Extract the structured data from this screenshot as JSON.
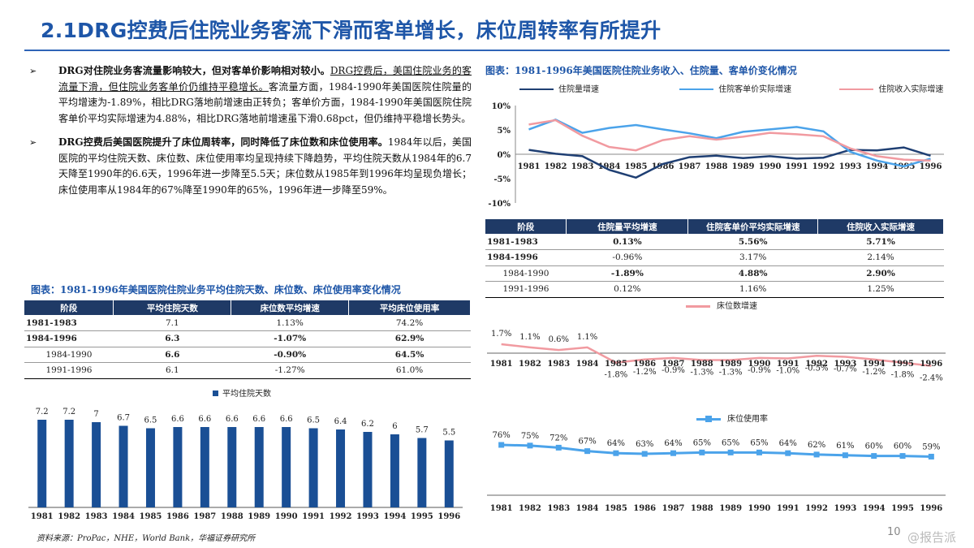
{
  "title": "2.1DRG控费后住院业务客流下滑而客单增长，床位周转率有所提升",
  "bullets": [
    {
      "mark": "➢",
      "bold": "DRG对住院业务客流量影响较大，但对客单价影响相对较小。",
      "underline": "DRG控费后，美国住院业务的客流量下滑，但住院业务客单价仍维持平稳增长。",
      "text": "客流量方面，1984-1990年美国医院住院量的平均增速为-1.89%，相比DRG落地前增速由正转负；客单价方面，1984-1990年美国医院住院客单价平均实际增速为4.88%，相比DRG落地前增速虽下滑0.68pct，但仍维持平稳增长势头。"
    },
    {
      "mark": "➢",
      "bold": "DRG控费后美国医院提升了床位周转率，同时降低了床位数和床位使用率。",
      "underline": "",
      "text": "1984年以后，美国医院的平均住院天数、床位数、床位使用率均呈现持续下降趋势，平均住院天数从1984年的6.7天降至1990年的6.6天，1996年进一步降至5.5天；床位数从1985年到1996年均呈现负增长；床位使用率从1984年的67%降至1990年的65%，1996年进一步降至59%。"
    }
  ],
  "caption_right": "图表：1981-1996年美国医院住院业务收入、住院量、客单价变化情况",
  "caption_left": "图表：1981-1996年美国医院住院业务平均住院天数、床位数、床位使用率变化情况",
  "table_right": {
    "headers": [
      "阶段",
      "住院量平均增速",
      "住院客单价平均实际增速",
      "住院收入实际增速"
    ],
    "rows": [
      {
        "cells": [
          "1981-1983",
          "0.13%",
          "5.56%",
          "5.71%"
        ],
        "bold": true
      },
      {
        "cells": [
          "1984-1996",
          "-0.96%",
          "3.17%",
          "2.14%"
        ],
        "bold": false
      },
      {
        "cells": [
          "1984-1990",
          "-1.89%",
          "4.88%",
          "2.90%"
        ],
        "bold": false
      },
      {
        "cells": [
          "1991-1996",
          "0.12%",
          "1.16%",
          "1.25%"
        ],
        "bold": false
      }
    ]
  },
  "table_left": {
    "headers": [
      "阶段",
      "平均住院天数",
      "床位数平均增速",
      "平均床位使用率"
    ],
    "rows": [
      {
        "cells": [
          "1981-1983",
          "7.1",
          "1.13%",
          "74.2%"
        ]
      },
      {
        "cells": [
          "1984-1996",
          "6.3",
          "-1.07%",
          "62.9%"
        ]
      },
      {
        "cells": [
          "1984-1990",
          "6.6",
          "-0.90%",
          "64.5%"
        ]
      },
      {
        "cells": [
          "1991-1996",
          "6.1",
          "-1.27%",
          "61.0%"
        ]
      }
    ]
  },
  "source": "资料来源：ProPac，NHE，World Bank，华福证券研究所",
  "page_number": "10",
  "watermark": "@报告派",
  "chart_data": [
    {
      "type": "line",
      "title": "1981-1996年美国医院住院业务收入、住院量、客单价变化情况",
      "categories": [
        "1981",
        "1982",
        "1983",
        "1984",
        "1985",
        "1986",
        "1987",
        "1988",
        "1989",
        "1990",
        "1991",
        "1992",
        "1993",
        "1994",
        "1995",
        "1996"
      ],
      "ylim": [
        -10,
        10
      ],
      "yticks": [
        "10%",
        "5%",
        "0%",
        "-5%",
        "-10%"
      ],
      "series": [
        {
          "name": "住院量增速",
          "color": "#1f3f73",
          "values": [
            0.9,
            0.1,
            -0.4,
            -3.2,
            -4.8,
            -2.0,
            -0.6,
            -0.3,
            -0.8,
            -0.4,
            -0.9,
            -0.7,
            0.9,
            0.8,
            1.4,
            -0.3
          ]
        },
        {
          "name": "住院客单价实际增速",
          "color": "#4ba3ea",
          "values": [
            5.1,
            7.1,
            4.4,
            5.4,
            6.0,
            5.1,
            4.3,
            3.3,
            4.6,
            5.1,
            5.6,
            4.7,
            0.5,
            -1.3,
            -2.5,
            -0.9
          ]
        },
        {
          "name": "住院收入实际增速",
          "color": "#f19aa0",
          "values": [
            6.1,
            7.0,
            3.8,
            1.5,
            0.8,
            2.9,
            3.7,
            3.0,
            3.6,
            4.4,
            4.1,
            3.7,
            1.2,
            -0.4,
            -1.1,
            -1.3
          ]
        }
      ]
    },
    {
      "type": "bar",
      "title": "平均住院天数",
      "legend": "平均住院天数",
      "color": "#1a4f95",
      "categories": [
        "1981",
        "1982",
        "1983",
        "1984",
        "1985",
        "1986",
        "1987",
        "1988",
        "1989",
        "1990",
        "1991",
        "1992",
        "1993",
        "1994",
        "1995",
        "1996"
      ],
      "values": [
        7.2,
        7.2,
        7,
        6.7,
        6.5,
        6.6,
        6.6,
        6.6,
        6.6,
        6.6,
        6.5,
        6.4,
        6.2,
        6,
        5.7,
        5.5
      ],
      "labels": [
        "7.2",
        "7.2",
        "7",
        "6.7",
        "6.5",
        "6.6",
        "6.6",
        "6.6",
        "6.6",
        "6.6",
        "6.5",
        "6.4",
        "6.2",
        "6",
        "5.7",
        "5.5"
      ],
      "ylim": [
        0,
        8
      ]
    },
    {
      "type": "line",
      "title": "床位数增速",
      "legend": "床位数增速",
      "color": "#f19aa0",
      "categories": [
        "1981",
        "1982",
        "1983",
        "1984",
        "1985",
        "1986",
        "1987",
        "1988",
        "1989",
        "1990",
        "1991",
        "1992",
        "1993",
        "1994",
        "1995",
        "1996"
      ],
      "values": [
        1.7,
        1.1,
        0.6,
        1.1,
        -1.8,
        -1.2,
        -0.9,
        -1.3,
        -1.3,
        -0.9,
        -1.0,
        -0.5,
        -0.7,
        -1.2,
        -1.8,
        -2.4
      ],
      "labels": [
        "1.7%",
        "1.1%",
        "0.6%",
        "1.1%",
        "-1.8%",
        "-1.2%",
        "-0.9%",
        "-1.3%",
        "-1.3%",
        "-0.9%",
        "-1.0%",
        "-0.5%",
        "-0.7%",
        "-1.2%",
        "-1.8%",
        "-2.4%"
      ]
    },
    {
      "type": "line",
      "title": "床位使用率",
      "legend": "床位使用率",
      "color": "#4ba3ea",
      "categories": [
        "1981",
        "1982",
        "1983",
        "1984",
        "1985",
        "1986",
        "1987",
        "1988",
        "1989",
        "1990",
        "1991",
        "1992",
        "1993",
        "1994",
        "1995",
        "1996"
      ],
      "values": [
        76,
        75,
        72,
        67,
        64,
        63,
        64,
        65,
        65,
        65,
        64,
        62,
        61,
        60,
        60,
        59
      ],
      "labels": [
        "76%",
        "75%",
        "72%",
        "67%",
        "64%",
        "63%",
        "64%",
        "65%",
        "65%",
        "65%",
        "64%",
        "62%",
        "61%",
        "60%",
        "60%",
        "59%"
      ]
    }
  ]
}
